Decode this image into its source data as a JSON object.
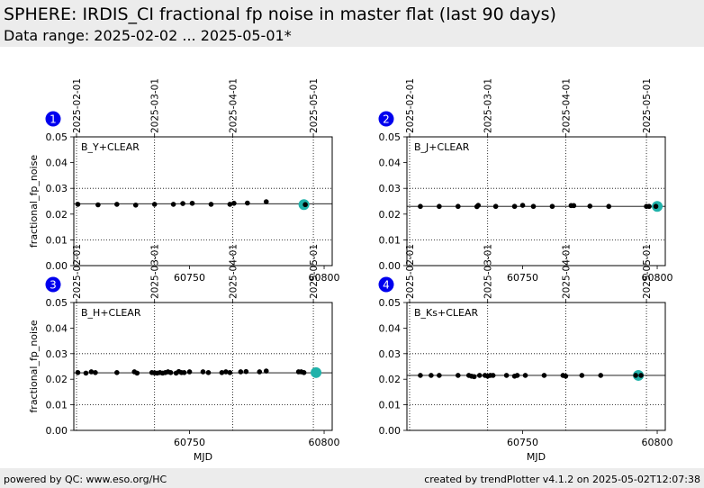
{
  "header": {
    "title": "SPHERE: IRDIS_CI fractional fp noise in master flat (last 90 days)",
    "subtitle": "Data range: 2025-02-02 ... 2025-05-01*"
  },
  "footer": {
    "left": "powered by QC: www.eso.org/HC",
    "right": "created by trendPlotter v4.1.2 on 2025-05-02T12:07:38"
  },
  "colors": {
    "points": "#000000",
    "highlight": "#20b2aa",
    "badge": "#0000ee"
  },
  "chart_data": [
    {
      "type": "scatter",
      "badge": "1",
      "label": "B_Y+CLEAR",
      "ylabel": "fractional_fp_noise",
      "xlabel": "",
      "xlim": [
        60707,
        60803
      ],
      "ylim": [
        0,
        0.05
      ],
      "yticks": [
        0.0,
        0.01,
        0.02,
        0.03,
        0.04,
        0.05
      ],
      "ytick_labels": [
        "0.00",
        "0.01",
        "0.02",
        "0.03",
        "0.04",
        "0.05"
      ],
      "xticks": [
        60750,
        60800
      ],
      "xtick_labels": [
        "60750",
        "60800"
      ],
      "date_ticks": [
        {
          "mjd": 60708,
          "label": "2025-02-01"
        },
        {
          "mjd": 60737,
          "label": "2025-03-01"
        },
        {
          "mjd": 60766,
          "label": "2025-04-01"
        },
        {
          "mjd": 60796,
          "label": "2025-05-01"
        }
      ],
      "hlines": [
        0.024,
        0.03,
        0.01
      ],
      "x": [
        60708.5,
        60716,
        60723,
        60730,
        60737,
        60744,
        60747.5,
        60751,
        60758,
        60765,
        60766.5,
        60771.5,
        60778.5,
        60793
      ],
      "y": [
        0.0238,
        0.0236,
        0.0238,
        0.0235,
        0.0238,
        0.0238,
        0.0241,
        0.0242,
        0.0238,
        0.0238,
        0.0242,
        0.0243,
        0.0248,
        0.0237
      ],
      "highlight": {
        "x": 60792.5,
        "y": 0.0237
      }
    },
    {
      "type": "scatter",
      "badge": "2",
      "label": "B_J+CLEAR",
      "ylabel": "",
      "xlabel": "",
      "xlim": [
        60707,
        60803
      ],
      "ylim": [
        0,
        0.05
      ],
      "yticks": [
        0.0,
        0.01,
        0.02,
        0.03,
        0.04,
        0.05
      ],
      "ytick_labels": [
        "0.00",
        "0.01",
        "0.02",
        "0.03",
        "0.04",
        "0.05"
      ],
      "xticks": [
        60750,
        60800
      ],
      "xtick_labels": [
        "60750",
        "60800"
      ],
      "date_ticks": [
        {
          "mjd": 60708,
          "label": "2025-02-01"
        },
        {
          "mjd": 60737,
          "label": "2025-03-01"
        },
        {
          "mjd": 60766,
          "label": "2025-04-01"
        },
        {
          "mjd": 60796,
          "label": "2025-05-01"
        }
      ],
      "hlines": [
        0.023,
        0.03,
        0.01
      ],
      "x": [
        60712,
        60719,
        60726,
        60733,
        60733.5,
        60740,
        60747,
        60750,
        60754,
        60761,
        60768,
        60769,
        60775,
        60782,
        60796,
        60797,
        60799.5
      ],
      "y": [
        0.023,
        0.023,
        0.023,
        0.0229,
        0.0234,
        0.023,
        0.023,
        0.0234,
        0.023,
        0.023,
        0.0233,
        0.0233,
        0.0231,
        0.023,
        0.023,
        0.023,
        0.023
      ],
      "highlight": {
        "x": 60800,
        "y": 0.023
      }
    },
    {
      "type": "scatter",
      "badge": "3",
      "label": "B_H+CLEAR",
      "ylabel": "fractional_fp_noise",
      "xlabel": "MJD",
      "xlim": [
        60707,
        60803
      ],
      "ylim": [
        0,
        0.05
      ],
      "yticks": [
        0.0,
        0.01,
        0.02,
        0.03,
        0.04,
        0.05
      ],
      "ytick_labels": [
        "0.00",
        "0.01",
        "0.02",
        "0.03",
        "0.04",
        "0.05"
      ],
      "xticks": [
        60750,
        60800
      ],
      "xtick_labels": [
        "60750",
        "60800"
      ],
      "date_ticks": [
        {
          "mjd": 60708,
          "label": "2025-02-01"
        },
        {
          "mjd": 60737,
          "label": "2025-03-01"
        },
        {
          "mjd": 60766,
          "label": "2025-04-01"
        },
        {
          "mjd": 60796,
          "label": "2025-05-01"
        }
      ],
      "hlines": [
        0.0225,
        0.03,
        0.01
      ],
      "x": [
        60708.5,
        60711.5,
        60713.5,
        60715,
        60723,
        60729.5,
        60730.5,
        60736,
        60737,
        60738,
        60739,
        60740,
        60741,
        60742,
        60743,
        60745,
        60746,
        60747,
        60748,
        60750,
        60755,
        60757,
        60762,
        60763.5,
        60765,
        60769,
        60771,
        60776,
        60778.5,
        60790.5,
        60791.5,
        60792.5
      ],
      "y": [
        0.0226,
        0.0224,
        0.0229,
        0.0226,
        0.0226,
        0.0229,
        0.0224,
        0.0226,
        0.0225,
        0.0224,
        0.0226,
        0.0224,
        0.0226,
        0.0229,
        0.0226,
        0.0224,
        0.023,
        0.0226,
        0.0226,
        0.0229,
        0.0229,
        0.0226,
        0.0226,
        0.0229,
        0.0226,
        0.0229,
        0.023,
        0.0229,
        0.0232,
        0.0229,
        0.0229,
        0.0226
      ],
      "highlight": {
        "x": 60797,
        "y": 0.0226
      }
    },
    {
      "type": "scatter",
      "badge": "4",
      "label": "B_Ks+CLEAR",
      "ylabel": "",
      "xlabel": "MJD",
      "xlim": [
        60707,
        60803
      ],
      "ylim": [
        0,
        0.05
      ],
      "yticks": [
        0.0,
        0.01,
        0.02,
        0.03,
        0.04,
        0.05
      ],
      "ytick_labels": [
        "0.00",
        "0.01",
        "0.02",
        "0.03",
        "0.04",
        "0.05"
      ],
      "xticks": [
        60750,
        60800
      ],
      "xtick_labels": [
        "60750",
        "60800"
      ],
      "date_ticks": [
        {
          "mjd": 60708,
          "label": "2025-02-01"
        },
        {
          "mjd": 60737,
          "label": "2025-03-01"
        },
        {
          "mjd": 60766,
          "label": "2025-04-01"
        },
        {
          "mjd": 60796,
          "label": "2025-05-01"
        }
      ],
      "hlines": [
        0.0215,
        0.03,
        0.01
      ],
      "x": [
        60712,
        60716,
        60719,
        60726,
        60730,
        60731,
        60732,
        60734,
        60736,
        60737,
        60738,
        60739,
        60744,
        60747,
        60748,
        60751,
        60758,
        60765,
        60766,
        60772,
        60779,
        60792,
        60794
      ],
      "y": [
        0.0215,
        0.0215,
        0.0215,
        0.0215,
        0.0215,
        0.0212,
        0.021,
        0.0215,
        0.0215,
        0.0212,
        0.0215,
        0.0215,
        0.0215,
        0.0212,
        0.0215,
        0.0215,
        0.0215,
        0.0215,
        0.0212,
        0.0215,
        0.0215,
        0.0215,
        0.0215
      ],
      "highlight": {
        "x": 60793,
        "y": 0.0215
      }
    }
  ]
}
